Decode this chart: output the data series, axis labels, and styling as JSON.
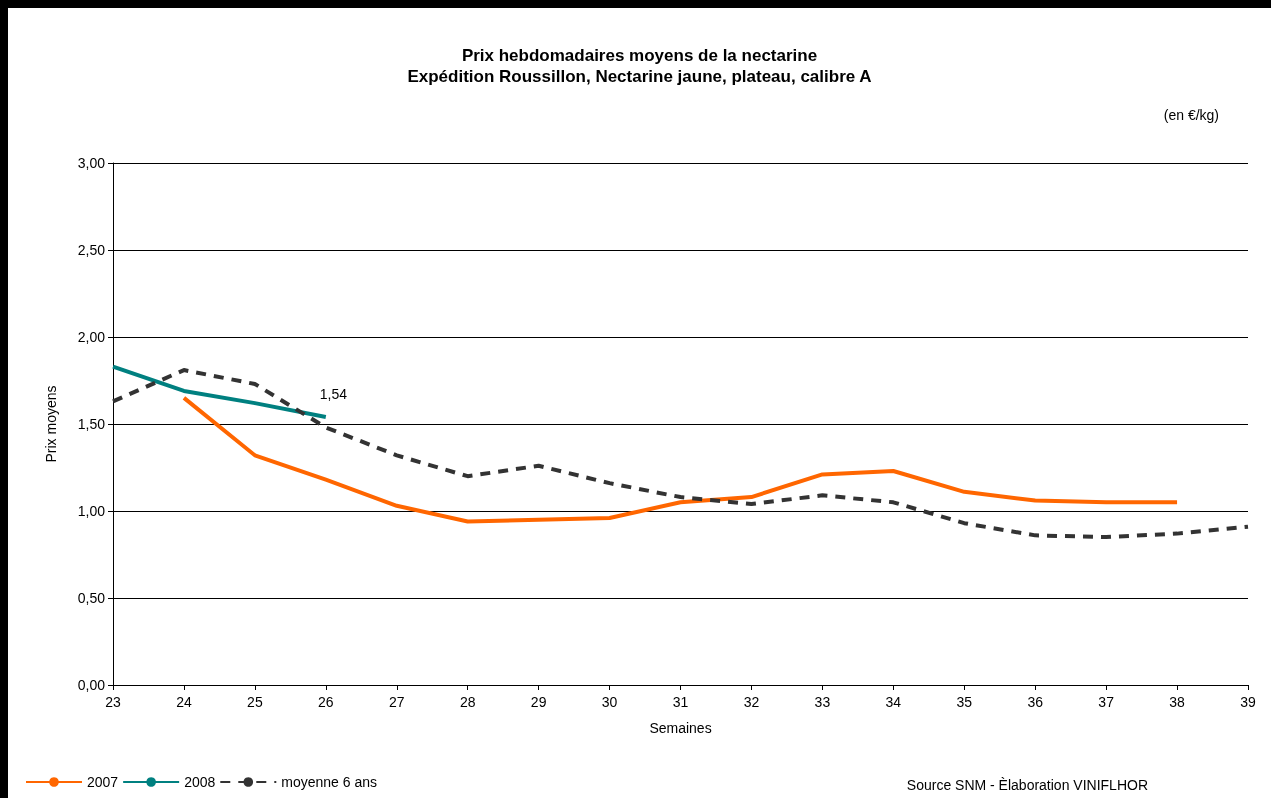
{
  "chart_data": {
    "type": "line",
    "title": "Prix hebdomadaires moyens de la nectarine",
    "subtitle": "Expédition Roussillon, Nectarine jaune, plateau, calibre A",
    "xlabel": "Semaines",
    "ylabel": "Prix moyens",
    "annotations": [
      "(en €/kg)",
      "Source SNM - Èlaboration VINIFLHOR",
      {
        "text": "1,54",
        "x": 26,
        "y": 1.54
      }
    ],
    "series": [
      {
        "name": "2007",
        "color": "#ff6600",
        "x": [
          24,
          25,
          26,
          27,
          28,
          29,
          30,
          31,
          32,
          33,
          34,
          35,
          36,
          37,
          38
        ],
        "values": [
          1.65,
          1.32,
          1.18,
          1.03,
          0.94,
          0.95,
          0.96,
          1.05,
          1.08,
          1.21,
          1.23,
          1.11,
          1.06,
          1.05,
          1.05
        ]
      },
      {
        "name": "2008",
        "color": "#008080",
        "x": [
          23,
          24,
          25,
          26
        ],
        "values": [
          1.83,
          1.69,
          1.62,
          1.54
        ]
      },
      {
        "name": "moyenne 6 ans",
        "color": "#333333",
        "line_style": "dashed",
        "x": [
          23,
          24,
          25,
          26,
          27,
          28,
          29,
          30,
          31,
          32,
          33,
          34,
          35,
          36,
          37,
          38,
          39
        ],
        "values": [
          1.63,
          1.81,
          1.73,
          1.48,
          1.32,
          1.2,
          1.26,
          1.16,
          1.08,
          1.04,
          1.09,
          1.05,
          0.93,
          0.86,
          0.85,
          0.87,
          0.91
        ]
      }
    ],
    "xlim": [
      23,
      39
    ],
    "xticks": [
      23,
      24,
      25,
      26,
      27,
      28,
      29,
      30,
      31,
      32,
      33,
      34,
      35,
      36,
      37,
      38,
      39
    ],
    "ylim": [
      0,
      3
    ],
    "yticks": [
      {
        "value": 0,
        "label": "0,00"
      },
      {
        "value": 0.5,
        "label": "0,50"
      },
      {
        "value": 1,
        "label": "1,00"
      },
      {
        "value": 1.5,
        "label": "1,50"
      },
      {
        "value": 2,
        "label": "2,00"
      },
      {
        "value": 2.5,
        "label": "2,50"
      },
      {
        "value": 3,
        "label": "3,00"
      }
    ],
    "grid": "y",
    "legend": "bottom left",
    "marker": "none",
    "line_style": "solid"
  }
}
